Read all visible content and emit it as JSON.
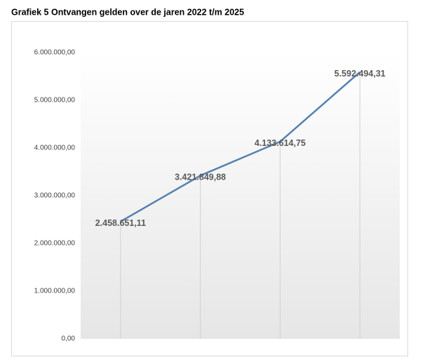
{
  "chart_data": {
    "type": "line",
    "title": "Grafiek 5 Ontvangen gelden over de jaren 2022 t/m 2025",
    "categories": [
      null,
      null,
      null,
      null
    ],
    "values": [
      2458651.11,
      3421849.88,
      4133614.75,
      5592494.31
    ],
    "value_labels": [
      "2.458.651,11",
      "3.421.849,88",
      "4.133.614,75",
      "5.592.494,31"
    ],
    "color": "#5480b0",
    "ylim": [
      0,
      6000000
    ],
    "yticks": [
      {
        "value": 0,
        "label": "0,00"
      },
      {
        "value": 1000000,
        "label": "1.000.000,00"
      },
      {
        "value": 2000000,
        "label": "2.000.000,00"
      },
      {
        "value": 3000000,
        "label": "3.000.000,00"
      },
      {
        "value": 4000000,
        "label": "4.000.000,00"
      },
      {
        "value": 5000000,
        "label": "5.000.000,00"
      },
      {
        "value": 6000000,
        "label": "6.000.000,00"
      }
    ]
  }
}
